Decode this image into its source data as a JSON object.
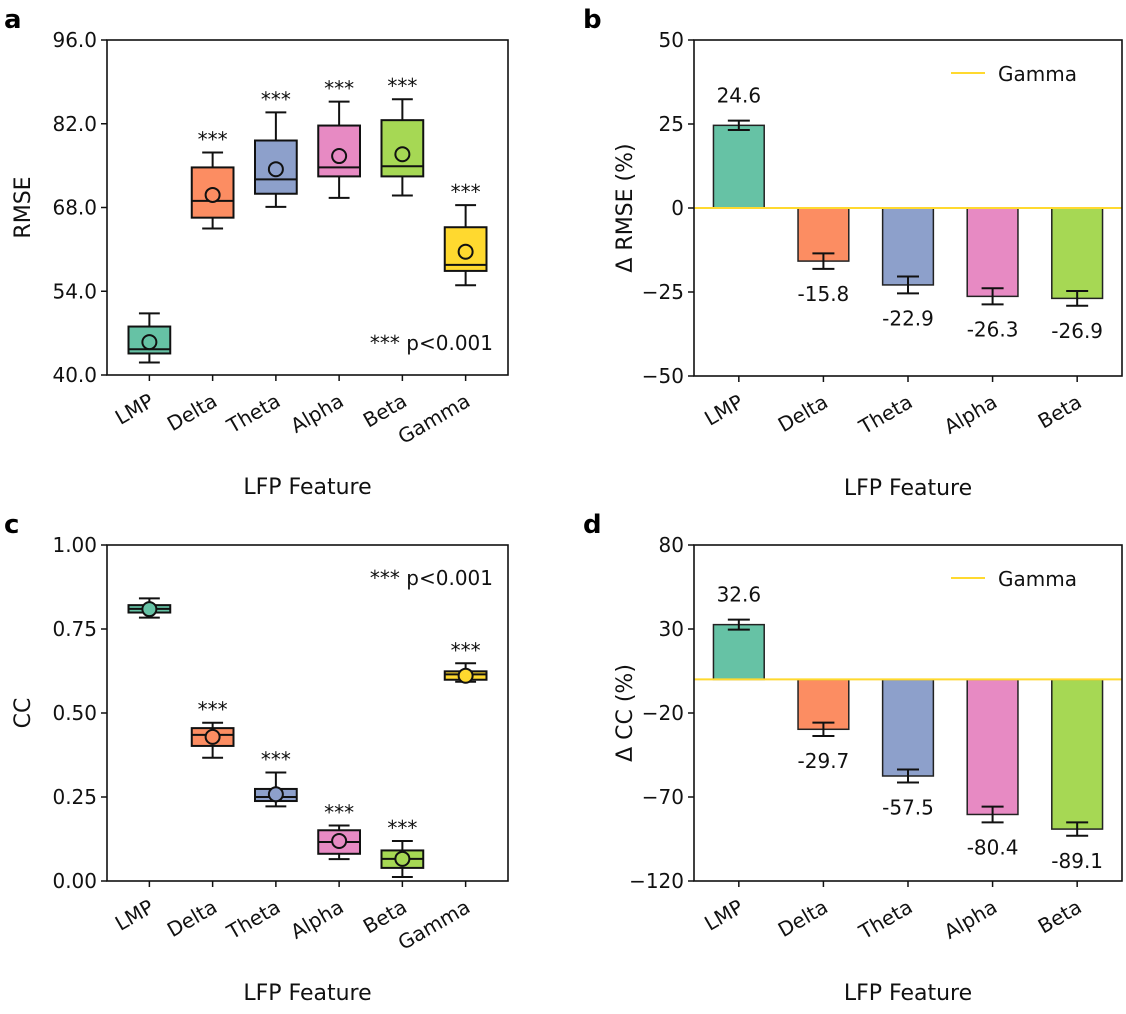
{
  "chart_data": [
    {
      "panel": "a",
      "type": "box",
      "categories": [
        "LMP",
        "Delta",
        "Theta",
        "Alpha",
        "Beta",
        "Gamma"
      ],
      "colors": [
        "#66c2a5",
        "#fc8d62",
        "#8da0cb",
        "#e78ac3",
        "#a6d854",
        "#ffd92f"
      ],
      "boxes": [
        {
          "whislo": 42.1,
          "q1": 43.6,
          "med": 44.3,
          "q3": 48.1,
          "whishi": 50.3,
          "mean": 45.5
        },
        {
          "whislo": 64.5,
          "q1": 66.3,
          "med": 69.1,
          "q3": 74.7,
          "whishi": 77.2,
          "mean": 70.1
        },
        {
          "whislo": 68.1,
          "q1": 70.3,
          "med": 72.7,
          "q3": 79.2,
          "whishi": 83.9,
          "mean": 74.4
        },
        {
          "whislo": 69.6,
          "q1": 73.2,
          "med": 74.7,
          "q3": 81.7,
          "whishi": 85.7,
          "mean": 76.6
        },
        {
          "whislo": 70.0,
          "q1": 73.2,
          "med": 74.9,
          "q3": 82.6,
          "whishi": 86.1,
          "mean": 76.9
        },
        {
          "whislo": 55.0,
          "q1": 57.4,
          "med": 58.4,
          "q3": 64.7,
          "whishi": 68.4,
          "mean": 60.6
        }
      ],
      "significance": [
        "",
        "***",
        "***",
        "***",
        "***",
        "***"
      ],
      "note": "*** p<0.001",
      "note_position": "bottom-right",
      "ylim": [
        40,
        96
      ],
      "yticks": [
        40,
        54,
        68,
        82,
        96
      ],
      "ytick_labels": [
        "40.0",
        "54.0",
        "68.0",
        "82.0",
        "96.0"
      ],
      "ylabel": "RMSE",
      "xlabel": "LFP Feature",
      "grid": false
    },
    {
      "panel": "b",
      "type": "bar",
      "categories": [
        "LMP",
        "Delta",
        "Theta",
        "Alpha",
        "Beta"
      ],
      "colors": [
        "#66c2a5",
        "#fc8d62",
        "#8da0cb",
        "#e78ac3",
        "#a6d854"
      ],
      "values": [
        24.6,
        -15.8,
        -22.9,
        -26.3,
        -26.9
      ],
      "errors": [
        1.4,
        2.3,
        2.5,
        2.4,
        2.2
      ],
      "value_labels": [
        "24.6",
        "-15.8",
        "-22.9",
        "-26.3",
        "-26.9"
      ],
      "reference_line": {
        "name": "Gamma",
        "value": 0,
        "color": "#ffd92f"
      },
      "legend": "top-right",
      "ylim": [
        -50,
        50
      ],
      "yticks": [
        -50,
        -25,
        0,
        25,
        50
      ],
      "ytick_labels": [
        "−50",
        "−25",
        "0",
        "25",
        "50"
      ],
      "ylabel": "Δ RMSE (%)",
      "xlabel": "LFP Feature",
      "grid": false
    },
    {
      "panel": "c",
      "type": "box",
      "categories": [
        "LMP",
        "Delta",
        "Theta",
        "Alpha",
        "Beta",
        "Gamma"
      ],
      "colors": [
        "#66c2a5",
        "#fc8d62",
        "#8da0cb",
        "#e78ac3",
        "#a6d854",
        "#ffd92f"
      ],
      "boxes": [
        {
          "whislo": 0.784,
          "q1": 0.799,
          "med": 0.81,
          "q3": 0.821,
          "whishi": 0.841,
          "mean": 0.809
        },
        {
          "whislo": 0.367,
          "q1": 0.402,
          "med": 0.435,
          "q3": 0.455,
          "whishi": 0.471,
          "mean": 0.429
        },
        {
          "whislo": 0.222,
          "q1": 0.238,
          "med": 0.25,
          "q3": 0.274,
          "whishi": 0.323,
          "mean": 0.258
        },
        {
          "whislo": 0.065,
          "q1": 0.081,
          "med": 0.116,
          "q3": 0.151,
          "whishi": 0.165,
          "mean": 0.119
        },
        {
          "whislo": 0.012,
          "q1": 0.039,
          "med": 0.066,
          "q3": 0.091,
          "whishi": 0.119,
          "mean": 0.066
        },
        {
          "whislo": 0.593,
          "q1": 0.599,
          "med": 0.615,
          "q3": 0.624,
          "whishi": 0.648,
          "mean": 0.611
        }
      ],
      "significance": [
        "",
        "***",
        "***",
        "***",
        "***",
        "***"
      ],
      "note": "*** p<0.001",
      "note_position": "top-right",
      "ylim": [
        0,
        1
      ],
      "yticks": [
        0,
        0.25,
        0.5,
        0.75,
        1
      ],
      "ytick_labels": [
        "0.00",
        "0.25",
        "0.50",
        "0.75",
        "1.00"
      ],
      "ylabel": "CC",
      "xlabel": "LFP Feature",
      "grid": false
    },
    {
      "panel": "d",
      "type": "bar",
      "categories": [
        "LMP",
        "Delta",
        "Theta",
        "Alpha",
        "Beta"
      ],
      "colors": [
        "#66c2a5",
        "#fc8d62",
        "#8da0cb",
        "#e78ac3",
        "#a6d854"
      ],
      "values": [
        32.6,
        -29.7,
        -57.5,
        -80.4,
        -89.1
      ],
      "errors": [
        3.0,
        4.0,
        3.9,
        4.7,
        4.0
      ],
      "value_labels": [
        "32.6",
        "-29.7",
        "-57.5",
        "-80.4",
        "-89.1"
      ],
      "reference_line": {
        "name": "Gamma",
        "value": 0,
        "color": "#ffd92f"
      },
      "legend": "top-right",
      "ylim": [
        -120,
        80
      ],
      "yticks": [
        -120,
        -70,
        -20,
        30,
        80
      ],
      "ytick_labels": [
        "−120",
        "−70",
        "−20",
        "30",
        "80"
      ],
      "ylabel": "Δ CC (%)",
      "xlabel": "LFP Feature",
      "grid": false
    }
  ]
}
